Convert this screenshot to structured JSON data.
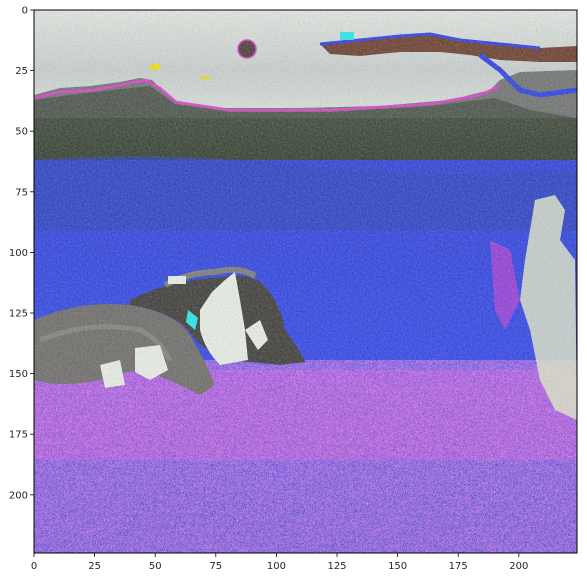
{
  "figure": {
    "kind": "image plot with pixel-index axes",
    "x_ticks": [
      0,
      25,
      50,
      75,
      100,
      125,
      150,
      175,
      200
    ],
    "y_ticks": [
      0,
      25,
      50,
      75,
      100,
      125,
      150,
      175,
      200
    ],
    "image_extent": {
      "x": [
        0,
        224
      ],
      "y": [
        0,
        224
      ]
    },
    "grid": false
  },
  "scene": {
    "description_tags": [
      "sky",
      "mountain-ridge",
      "forest",
      "field",
      "animal",
      "animal"
    ],
    "palette": {
      "sky": "#dfe5e0",
      "sky_shadow": "#b9c2c1",
      "ridge": "#6d6f70",
      "forest": "#2f3d2a",
      "field_blue": "#2a3de8",
      "field_magenta": "#e23ad0",
      "animal_grey": "#6c6b68",
      "animal_dark": "#2b2a28",
      "highlight_white": "#e9efe6",
      "cyan": "#27e8e8",
      "yellow": "#e8e020",
      "brown": "#6a3a2a"
    }
  }
}
